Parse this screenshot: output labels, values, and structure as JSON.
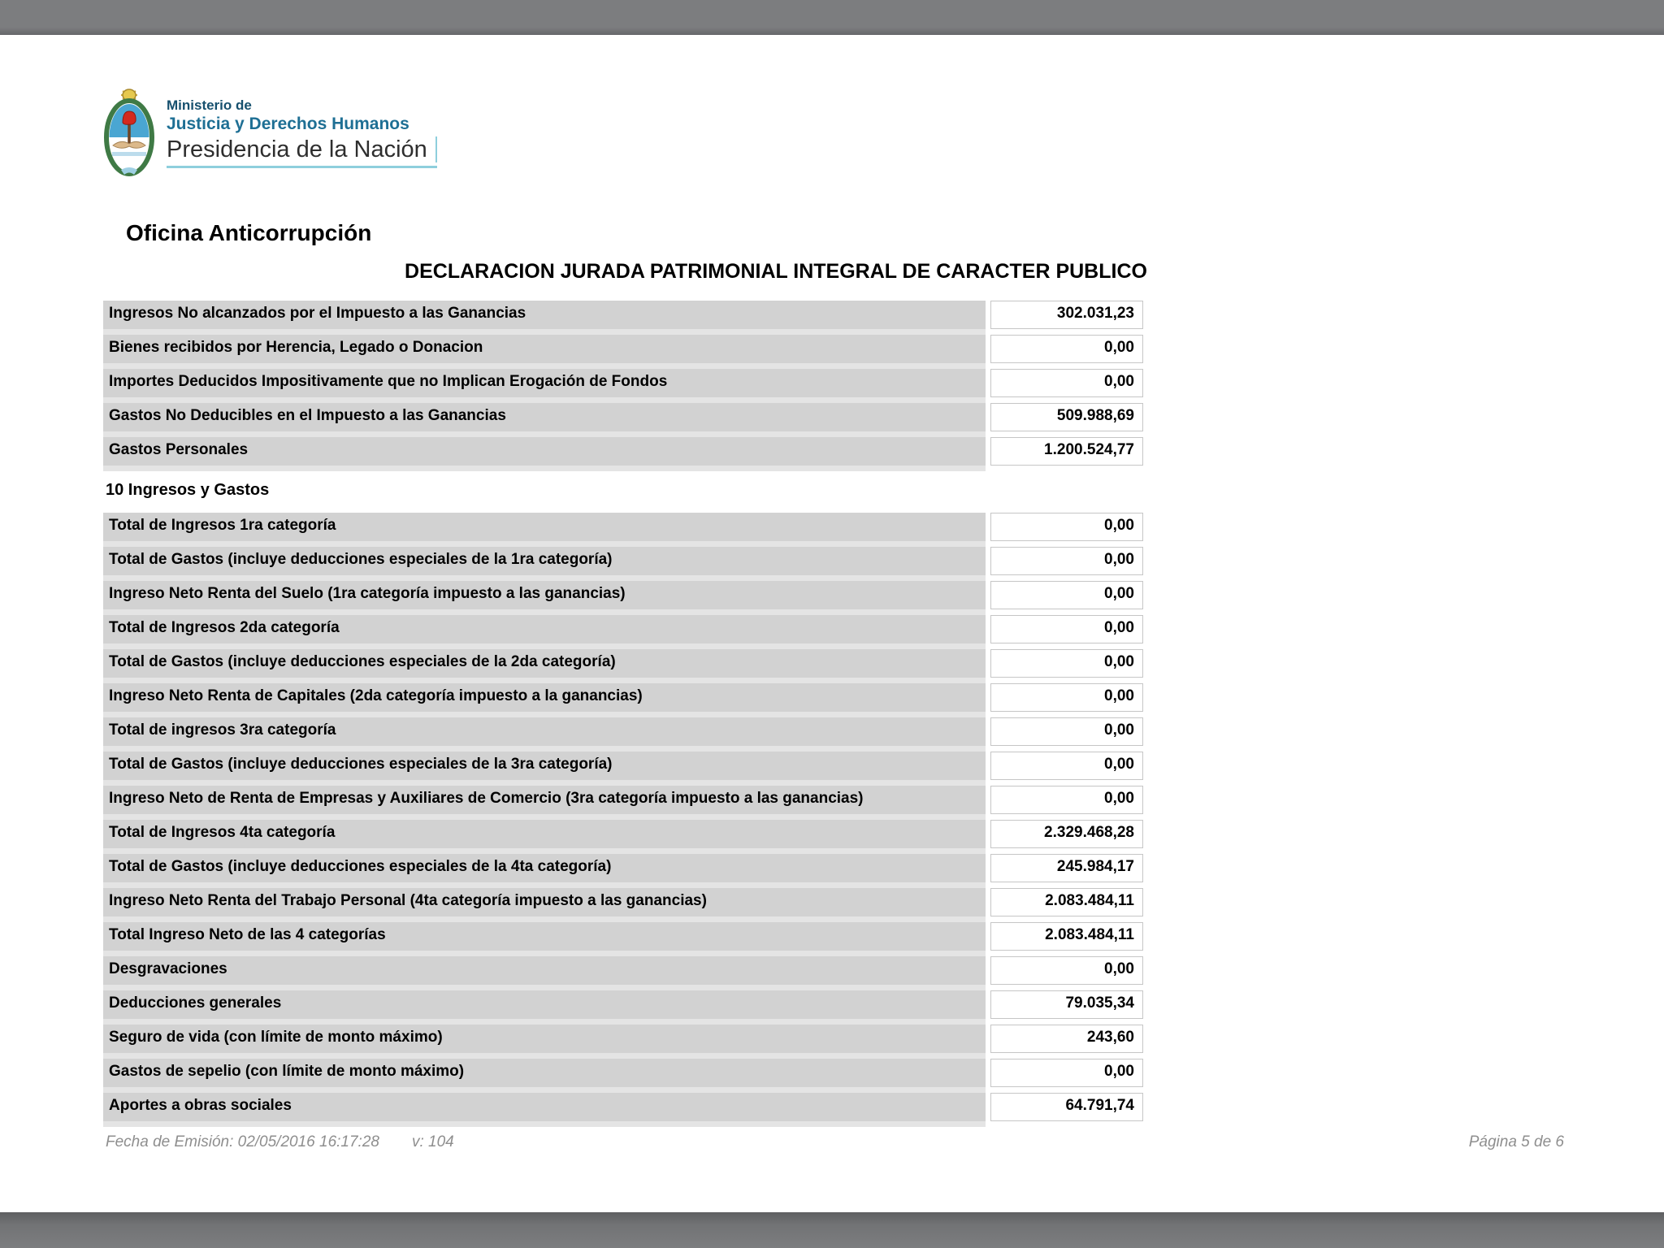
{
  "colors": {
    "viewer_chrome_gray": "#7b7c7e",
    "row_label_gray": "#d2d2d2",
    "row_gap_gray": "#e4e4e4",
    "value_border_gray": "#c6c6c6",
    "logo_navy": "#16506e",
    "logo_teal_blue": "#1e6f94",
    "logo_accent_teal": "#8ecfdd",
    "footer_gray": "#8e8e8e"
  },
  "logo": {
    "line1": "Ministerio de",
    "line2": "Justicia y Derechos Humanos",
    "line3": "Presidencia de la Nación"
  },
  "office_heading": "Oficina Anticorrupción",
  "document_title": "DECLARACION JURADA PATRIMONIAL INTEGRAL DE CARACTER PUBLICO",
  "section1": {
    "rows": [
      {
        "label": "Ingresos No alcanzados por el Impuesto a las Ganancias",
        "value": "302.031,23"
      },
      {
        "label": "Bienes recibidos por Herencia, Legado o Donacion",
        "value": "0,00"
      },
      {
        "label": "Importes Deducidos Impositivamente que no Implican Erogación de Fondos",
        "value": "0,00"
      },
      {
        "label": "Gastos No Deducibles en el Impuesto a las Ganancias",
        "value": "509.988,69"
      },
      {
        "label": "Gastos Personales",
        "value": "1.200.524,77"
      }
    ]
  },
  "section2": {
    "header": "10 Ingresos y Gastos",
    "rows": [
      {
        "label": "Total de Ingresos 1ra categoría",
        "value": "0,00"
      },
      {
        "label": "Total de Gastos (incluye deducciones especiales de la 1ra categoría)",
        "value": "0,00"
      },
      {
        "label": "Ingreso Neto Renta del Suelo (1ra categoría impuesto a las ganancias)",
        "value": "0,00"
      },
      {
        "label": "Total de Ingresos 2da categoría",
        "value": "0,00"
      },
      {
        "label": "Total de Gastos (incluye deducciones especiales de la 2da categoría)",
        "value": "0,00"
      },
      {
        "label": "Ingreso Neto Renta de Capitales (2da categoría impuesto a la ganancias)",
        "value": "0,00"
      },
      {
        "label": "Total de ingresos 3ra categoría",
        "value": "0,00"
      },
      {
        "label": "Total de Gastos (incluye deducciones especiales de la 3ra categoría)",
        "value": "0,00"
      },
      {
        "label": "Ingreso Neto de Renta de Empresas y Auxiliares de Comercio (3ra categoría impuesto a las ganancias)",
        "value": "0,00"
      },
      {
        "label": "Total de Ingresos 4ta categoría",
        "value": "2.329.468,28"
      },
      {
        "label": "Total de Gastos (incluye deducciones especiales de la 4ta categoría)",
        "value": "245.984,17"
      },
      {
        "label": "Ingreso Neto Renta del Trabajo Personal (4ta categoría impuesto a las ganancias)",
        "value": "2.083.484,11"
      },
      {
        "label": "Total Ingreso Neto de las 4 categorías",
        "value": "2.083.484,11"
      },
      {
        "label": "Desgravaciones",
        "value": "0,00"
      },
      {
        "label": "Deducciones generales",
        "value": "79.035,34"
      },
      {
        "label": "Seguro de vida (con límite de monto máximo)",
        "value": "243,60"
      },
      {
        "label": "Gastos de sepelio (con límite de monto máximo)",
        "value": "0,00"
      },
      {
        "label": "Aportes a obras sociales",
        "value": "64.791,74"
      }
    ]
  },
  "footer": {
    "emission": "Fecha de Emisión: 02/05/2016 16:17:28",
    "version": "v: 104",
    "page": "Página 5 de 6"
  }
}
